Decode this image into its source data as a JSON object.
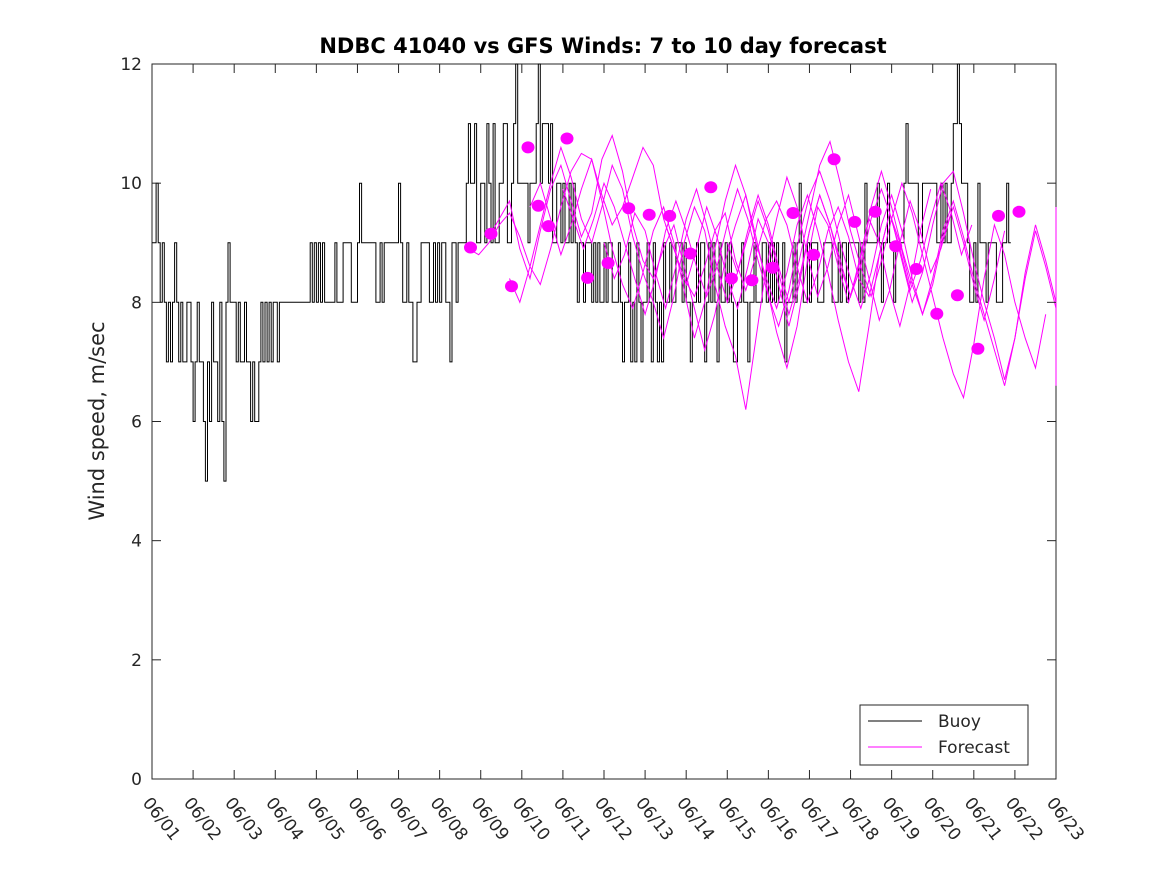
{
  "chart_data": {
    "type": "line",
    "title": "NDBC 41040 vs GFS Winds: 7 to 10 day forecast",
    "xlabel": "",
    "ylabel": "Wind speed, m/sec",
    "x_ticks": [
      "06/01",
      "06/02",
      "06/03",
      "06/04",
      "06/05",
      "06/06",
      "06/07",
      "06/08",
      "06/09",
      "06/10",
      "06/11",
      "06/12",
      "06/13",
      "06/14",
      "06/15",
      "06/16",
      "06/17",
      "06/18",
      "06/19",
      "06/20",
      "06/21",
      "06/22",
      "06/23"
    ],
    "y_ticks": [
      0,
      2,
      4,
      6,
      8,
      10,
      12
    ],
    "xlim_days": [
      0,
      22
    ],
    "ylim": [
      0,
      12
    ],
    "legend": {
      "position": "bottom-right",
      "entries": [
        "Buoy",
        "Forecast"
      ]
    },
    "colors": {
      "buoy": "#000000",
      "forecast": "#ff00ff"
    },
    "series": [
      {
        "name": "Buoy",
        "kind": "step-line",
        "x_start_day": 0,
        "x_step_day": 0.05,
        "values": [
          9,
          9,
          10,
          9,
          8,
          9,
          8,
          7,
          8,
          7,
          8,
          9,
          8,
          7,
          8,
          7,
          7,
          8,
          8,
          7,
          6,
          7,
          8,
          7,
          7,
          6,
          5,
          7,
          6,
          8,
          7,
          7,
          6,
          8,
          6,
          5,
          8,
          9,
          8,
          8,
          8,
          7,
          8,
          7,
          7,
          8,
          7,
          7,
          6,
          7,
          6,
          6,
          7,
          8,
          7,
          8,
          7,
          8,
          7,
          8,
          8,
          7,
          8,
          8,
          8,
          8,
          8,
          8,
          8,
          8,
          8,
          8,
          8,
          8,
          8,
          8,
          8,
          9,
          8,
          9,
          8,
          9,
          8,
          9,
          8,
          8,
          8,
          8,
          8,
          9,
          8,
          8,
          8,
          9,
          9,
          9,
          9,
          8,
          8,
          8,
          9,
          10,
          9,
          9,
          9,
          9,
          9,
          9,
          9,
          8,
          8,
          9,
          8,
          9,
          9,
          9,
          9,
          9,
          9,
          9,
          10,
          9,
          8,
          8,
          9,
          8,
          8,
          7,
          7,
          8,
          8,
          9,
          9,
          9,
          9,
          8,
          8,
          9,
          8,
          9,
          8,
          9,
          9,
          8,
          8,
          7,
          9,
          9,
          8,
          9,
          9,
          9,
          9,
          10,
          11,
          10,
          10,
          11,
          9,
          9,
          10,
          10,
          9,
          11,
          10,
          9,
          11,
          9,
          9,
          10,
          10,
          11,
          11,
          9,
          9,
          10,
          11,
          12,
          10,
          10,
          10,
          10,
          10,
          9,
          10,
          10,
          10,
          11,
          12,
          10,
          11,
          11,
          11,
          10,
          11,
          9,
          9,
          10,
          10,
          9,
          10,
          9,
          9,
          10,
          9,
          10,
          9,
          8,
          9,
          9,
          8,
          9,
          9,
          9,
          8,
          9,
          8,
          9,
          8,
          8,
          9,
          8,
          9,
          9,
          8,
          8,
          8,
          9,
          8,
          7,
          8,
          8,
          9,
          7,
          8,
          7,
          9,
          8,
          7,
          8,
          8,
          9,
          8,
          7,
          9,
          8,
          7,
          8,
          7,
          9,
          8,
          8,
          9,
          8,
          8,
          9,
          9,
          9,
          8,
          9,
          8,
          8,
          7,
          8,
          8,
          9,
          8,
          9,
          9,
          7,
          8,
          9,
          8,
          9,
          8,
          7,
          9,
          8,
          8,
          9,
          8,
          9,
          8,
          7,
          7,
          8,
          8,
          9,
          8,
          8,
          7,
          8,
          8,
          9,
          8,
          8,
          8,
          9,
          9,
          8,
          9,
          8,
          9,
          8,
          9,
          8,
          8,
          9,
          7,
          8,
          8,
          8,
          9,
          8,
          9,
          10,
          9,
          8,
          8,
          9,
          8,
          9,
          9,
          9,
          8,
          8,
          8,
          9,
          9,
          9,
          9,
          8,
          8,
          8,
          9,
          8,
          9,
          9,
          8,
          9,
          9,
          9,
          9,
          9,
          8,
          9,
          8,
          10,
          9,
          9,
          9,
          9,
          9,
          10,
          9,
          8,
          9,
          9,
          10,
          9,
          9,
          8,
          9,
          9,
          9,
          9,
          10,
          11,
          10,
          10,
          10,
          10,
          10,
          9,
          9,
          10,
          10,
          10,
          10,
          10,
          10,
          10,
          9,
          9,
          10,
          9,
          10,
          9,
          9,
          10,
          11,
          11,
          12,
          11,
          10,
          10,
          10,
          9,
          8,
          8,
          9,
          8,
          10,
          9,
          9,
          9,
          8,
          9,
          9,
          9,
          9,
          8,
          8,
          8,
          9,
          9,
          10,
          9
        ]
      },
      {
        "name": "Forecast",
        "kind": "line",
        "runs": [
          {
            "x_start_day": 7.7,
            "x_step_day": 0.25,
            "values": [
              8.9,
              8.8,
              9.0,
              9.3,
              9.5,
              9.1,
              8.6,
              8.3,
              8.9,
              9.6,
              10.2,
              10.5,
              10.4,
              9.8,
              9.3,
              9.6,
              10.1,
              10.6,
              10.3,
              9.4,
              8.9,
              8.4,
              8.1,
              8.6,
              9.2,
              9.5,
              8.7,
              8.2,
              8.8,
              9.4,
              9.7,
              9.3,
              8.6,
              8.0,
              8.5,
              9.2,
              9.6,
              9.1,
              8.4,
              8.1,
              8.8,
              9.5,
              9.0,
              8.3
            ]
          },
          {
            "x_start_day": 8.2,
            "x_step_day": 0.25,
            "values": [
              9.1,
              9.4,
              9.7,
              8.9,
              8.4,
              9.2,
              9.9,
              10.3,
              9.7,
              9.1,
              9.5,
              10.4,
              10.8,
              10.2,
              9.3,
              8.7,
              8.4,
              8.9,
              9.3,
              8.6,
              7.9,
              7.2,
              7.8,
              8.7,
              9.3,
              9.8,
              9.1,
              8.3,
              7.5,
              6.9,
              7.6,
              8.7,
              9.6,
              9.3,
              8.6,
              8.0,
              8.6,
              9.4,
              9.0,
              8.2,
              7.6,
              8.3,
              9.2,
              9.9
            ]
          },
          {
            "x_start_day": 8.7,
            "x_step_day": 0.25,
            "values": [
              8.4,
              8.0,
              8.6,
              9.3,
              10.0,
              10.6,
              10.1,
              9.4,
              9.0,
              9.6,
              10.3,
              9.9,
              9.1,
              8.5,
              8.0,
              7.4,
              8.1,
              9.0,
              9.6,
              9.2,
              8.3,
              7.6,
              7.1,
              6.2,
              7.4,
              8.6,
              9.4,
              10.1,
              9.6,
              8.8,
              8.1,
              8.6,
              9.3,
              9.8,
              9.1,
              8.4,
              7.7,
              8.2,
              9.0,
              9.7,
              9.2,
              8.5,
              8.9,
              9.5
            ]
          },
          {
            "x_start_day": 9.2,
            "x_step_day": 0.25,
            "values": [
              9.6,
              10.0,
              9.4,
              8.8,
              9.3,
              9.9,
              10.4,
              9.7,
              8.9,
              8.3,
              7.9,
              8.5,
              9.2,
              9.6,
              9.0,
              8.2,
              7.4,
              8.0,
              8.9,
              9.7,
              10.3,
              9.8,
              9.0,
              8.4,
              7.9,
              8.5,
              9.3,
              9.8,
              9.2,
              8.5,
              7.7,
              7.0,
              6.5,
              7.6,
              8.8,
              9.5,
              8.9,
              8.2,
              8.7,
              9.4,
              10.0,
              9.5,
              8.8,
              9.3
            ]
          },
          {
            "x_start_day": 10.0,
            "x_step_day": 0.25,
            "values": [
              9.9,
              9.4,
              8.9,
              9.4,
              10.0,
              9.6,
              9.0,
              8.4,
              7.8,
              8.4,
              9.2,
              9.7,
              9.2,
              8.6,
              8.1,
              8.6,
              9.3,
              9.9,
              9.4,
              8.7,
              8.1,
              7.6,
              8.2,
              9.1,
              9.8,
              10.2,
              9.7,
              9.0,
              8.4,
              7.9,
              8.5,
              9.3,
              9.8,
              9.2,
              8.4,
              7.8,
              8.3,
              9.1,
              9.6,
              9.0,
              8.3,
              7.7,
              8.4,
              9.2
            ]
          },
          {
            "x_start_day": 11.0,
            "x_step_day": 0.25,
            "values": [
              9.0,
              8.4,
              8.8,
              9.5,
              9.2,
              8.5,
              7.9,
              8.6,
              9.4,
              9.9,
              9.3,
              8.6,
              8.0,
              8.5,
              9.2,
              9.8,
              9.3,
              8.6,
              8.0,
              8.7,
              9.5,
              10.3,
              10.7,
              10.0,
              9.2,
              8.6,
              8.1,
              8.7,
              9.4,
              10.0,
              9.5,
              8.8,
              8.1,
              7.4,
              6.8,
              6.4,
              7.3,
              8.4,
              9.3,
              8.8,
              8.0,
              7.4,
              6.9,
              7.8
            ]
          },
          {
            "x_start_day": 12.5,
            "x_step_day": 0.25,
            "values": [
              9.3,
              8.8,
              8.3,
              8.9,
              9.6,
              9.1,
              8.4,
              7.9,
              8.6,
              9.4,
              9.0,
              8.3,
              7.6,
              8.3,
              9.2,
              9.8,
              9.3,
              8.7,
              8.1,
              8.6,
              9.4,
              9.9,
              9.4,
              8.7,
              8.0,
              8.5,
              9.3,
              10.0,
              10.2,
              9.5,
              8.7,
              8.0,
              7.4,
              6.7,
              7.4,
              8.4,
              9.2,
              8.6,
              7.9,
              7.2,
              6.6,
              7.5,
              8.6,
              9.1
            ]
          },
          {
            "x_start_day": 14.0,
            "x_step_day": 0.25,
            "values": [
              9.0,
              8.5,
              9.1,
              9.7,
              9.2,
              8.5,
              7.8,
              8.4,
              9.2,
              9.8,
              9.3,
              8.6,
              8.1,
              8.8,
              9.6,
              10.2,
              9.6,
              8.9,
              8.3,
              7.8,
              8.4,
              9.2,
              9.7,
              9.1,
              8.4,
              7.8,
              7.2,
              6.6,
              7.4,
              8.5,
              9.3,
              8.7,
              8.0,
              7.3,
              6.8,
              7.9,
              8.9,
              9.6,
              9.1,
              8.5,
              8.9,
              9.4,
              8.8,
              8.4
            ]
          }
        ]
      },
      {
        "name": "Forecast (verifying points)",
        "kind": "points",
        "x_days": [
          7.75,
          8.25,
          8.75,
          9.15,
          9.4,
          9.65,
          10.1,
          10.6,
          11.1,
          11.6,
          12.1,
          12.6,
          13.1,
          13.6,
          14.1,
          14.6,
          15.1,
          15.6,
          16.1,
          16.6,
          17.1,
          17.6,
          18.1,
          18.6,
          19.1,
          19.6,
          20.1,
          20.6,
          21.1
        ],
        "values": [
          8.92,
          9.15,
          8.27,
          10.6,
          9.62,
          9.28,
          10.75,
          8.41,
          8.66,
          9.58,
          9.47,
          9.45,
          8.82,
          9.93,
          8.4,
          8.37,
          8.58,
          9.5,
          8.8,
          10.4,
          9.35,
          9.52,
          8.94,
          8.56,
          7.81,
          8.12,
          7.22,
          9.45,
          9.52
        ]
      }
    ]
  }
}
